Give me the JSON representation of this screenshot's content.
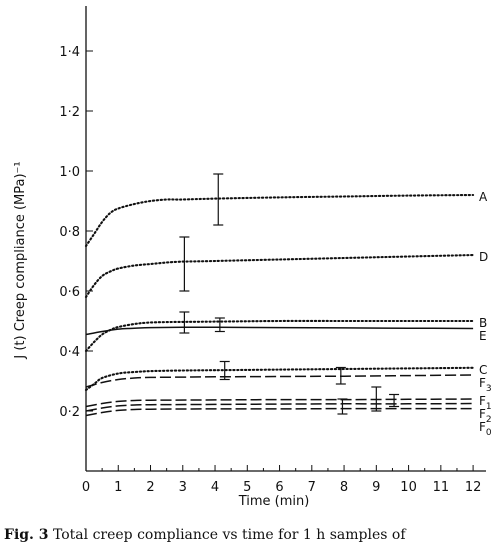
{
  "chart_data": {
    "type": "line",
    "xlabel": "Time (min)",
    "ylabel": "J (t) Creep compliance (MPa)⁻¹",
    "xlim": [
      0,
      12.4
    ],
    "ylim": [
      0,
      1.55
    ],
    "x_ticks": [
      {
        "value": 0,
        "label": "0"
      },
      {
        "value": 1,
        "label": "1"
      },
      {
        "value": 2,
        "label": "2"
      },
      {
        "value": 3,
        "label": "3"
      },
      {
        "value": 4,
        "label": "4"
      },
      {
        "value": 5,
        "label": "5"
      },
      {
        "value": 6,
        "label": "6"
      },
      {
        "value": 7,
        "label": "7"
      },
      {
        "value": 8,
        "label": "8"
      },
      {
        "value": 9,
        "label": "9"
      },
      {
        "value": 10,
        "label": "10"
      },
      {
        "value": 11,
        "label": "11"
      },
      {
        "value": 12,
        "label": "12"
      }
    ],
    "y_ticks": [
      {
        "value": 0.2,
        "label": "0·2"
      },
      {
        "value": 0.4,
        "label": "0·4"
      },
      {
        "value": 0.6,
        "label": "0·6"
      },
      {
        "value": 0.8,
        "label": "0·8"
      },
      {
        "value": 1.0,
        "label": "1·0"
      },
      {
        "value": 1.2,
        "label": "1·2"
      },
      {
        "value": 1.4,
        "label": "1·4"
      }
    ],
    "grid": false,
    "series": [
      {
        "name": "A",
        "style": "dotted",
        "x": [
          0,
          0.25,
          0.5,
          0.75,
          1,
          1.5,
          2,
          2.5,
          3,
          4,
          6,
          8,
          10,
          12
        ],
        "y": [
          0.75,
          0.79,
          0.83,
          0.86,
          0.875,
          0.89,
          0.9,
          0.905,
          0.905,
          0.908,
          0.912,
          0.915,
          0.918,
          0.92
        ],
        "error_bars": [
          {
            "x": 4.1,
            "low": 0.82,
            "high": 0.99
          }
        ]
      },
      {
        "name": "D",
        "style": "dotted",
        "x": [
          0,
          0.25,
          0.5,
          0.75,
          1,
          1.5,
          2,
          2.5,
          3,
          4,
          6,
          8,
          10,
          12
        ],
        "y": [
          0.58,
          0.62,
          0.65,
          0.665,
          0.675,
          0.685,
          0.69,
          0.695,
          0.698,
          0.7,
          0.705,
          0.71,
          0.715,
          0.72
        ],
        "error_bars": [
          {
            "x": 3.05,
            "low": 0.6,
            "high": 0.78
          }
        ]
      },
      {
        "name": "B",
        "style": "dotted",
        "x": [
          0,
          0.25,
          0.5,
          0.75,
          1,
          1.5,
          2,
          3,
          4,
          6,
          8,
          10,
          12
        ],
        "y": [
          0.4,
          0.43,
          0.455,
          0.47,
          0.48,
          0.49,
          0.495,
          0.497,
          0.498,
          0.5,
          0.5,
          0.5,
          0.5
        ],
        "error_bars": [
          {
            "x": 3.05,
            "low": 0.46,
            "high": 0.53
          },
          {
            "x": 4.15,
            "low": 0.465,
            "high": 0.51
          }
        ]
      },
      {
        "name": "E",
        "style": "solid",
        "x": [
          0,
          0.5,
          1,
          1.5,
          2,
          3,
          4,
          6,
          8,
          10,
          12
        ],
        "y": [
          0.455,
          0.465,
          0.473,
          0.476,
          0.478,
          0.479,
          0.479,
          0.478,
          0.477,
          0.476,
          0.475
        ],
        "error_bars": []
      },
      {
        "name": "C",
        "style": "dotted",
        "x": [
          0,
          0.25,
          0.5,
          1,
          1.5,
          2,
          3,
          4,
          6,
          8,
          10,
          12
        ],
        "y": [
          0.27,
          0.29,
          0.31,
          0.325,
          0.33,
          0.333,
          0.335,
          0.336,
          0.338,
          0.34,
          0.342,
          0.344
        ],
        "error_bars": [
          {
            "x": 4.3,
            "low": 0.305,
            "high": 0.365
          },
          {
            "x": 7.9,
            "low": 0.29,
            "high": 0.345
          }
        ]
      },
      {
        "name": "F3",
        "style": "dashed",
        "x": [
          0,
          0.5,
          1,
          1.5,
          2,
          3,
          4,
          6,
          8,
          10,
          12
        ],
        "y": [
          0.28,
          0.295,
          0.305,
          0.31,
          0.312,
          0.313,
          0.314,
          0.315,
          0.316,
          0.318,
          0.32
        ],
        "error_bars": []
      },
      {
        "name": "F1",
        "style": "dashed",
        "x": [
          0,
          0.5,
          1,
          1.5,
          2,
          4,
          6,
          8,
          10,
          12
        ],
        "y": [
          0.215,
          0.225,
          0.232,
          0.235,
          0.236,
          0.237,
          0.238,
          0.238,
          0.239,
          0.24
        ],
        "error_bars": [
          {
            "x": 9.0,
            "low": 0.2,
            "high": 0.28
          },
          {
            "x": 9.55,
            "low": 0.215,
            "high": 0.255
          }
        ]
      },
      {
        "name": "F2",
        "style": "dashed",
        "x": [
          0,
          0.5,
          1,
          1.5,
          2,
          4,
          6,
          8,
          10,
          12
        ],
        "y": [
          0.2,
          0.21,
          0.217,
          0.22,
          0.221,
          0.222,
          0.223,
          0.224,
          0.224,
          0.225
        ],
        "error_bars": [
          {
            "x": 7.95,
            "low": 0.19,
            "high": 0.24
          }
        ]
      },
      {
        "name": "F0",
        "style": "dashed",
        "x": [
          0,
          0.5,
          1,
          1.5,
          2,
          4,
          6,
          8,
          10,
          12
        ],
        "y": [
          0.185,
          0.195,
          0.202,
          0.205,
          0.206,
          0.207,
          0.207,
          0.208,
          0.208,
          0.208
        ],
        "error_bars": []
      }
    ],
    "labels": [
      {
        "series": "A",
        "text": "A"
      },
      {
        "series": "D",
        "text": "D"
      },
      {
        "series": "B",
        "text": "B"
      },
      {
        "series": "E",
        "text": "E"
      },
      {
        "series": "C",
        "text": "C"
      },
      {
        "series": "F3",
        "text": "F",
        "sub": "3"
      },
      {
        "series": "F1",
        "text": "F",
        "sub": "1"
      },
      {
        "series": "F2",
        "text": "F",
        "sub": "2"
      },
      {
        "series": "F0",
        "text": "F",
        "sub": "0"
      }
    ]
  },
  "caption": {
    "label": "Fig. 3",
    "text": " Total creep compliance vs time for 1 h samples of"
  }
}
